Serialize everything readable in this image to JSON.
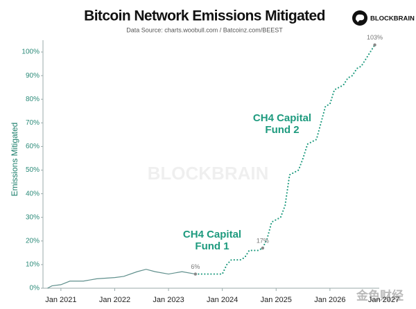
{
  "chart_data": {
    "type": "line",
    "title": "Bitcoin Network Emissions Mitigated",
    "subtitle": "Data Source: charts.woobull.com / Batcoinz.com/BEEST",
    "brand": "BLOCKBRAIN",
    "watermarks": [
      "BLOCKBRAIN",
      "金色财经"
    ],
    "y_label": "Emissions Mitigated",
    "xlim": [
      "2020-09",
      "2026-12"
    ],
    "xticks": [
      {
        "value": "2021-01",
        "label": "Jan 2021"
      },
      {
        "value": "2022-01",
        "label": "Jan 2022"
      },
      {
        "value": "2023-01",
        "label": "Jan 2023"
      },
      {
        "value": "2024-01",
        "label": "Jan 2024"
      },
      {
        "value": "2025-01",
        "label": "Jan 2025"
      },
      {
        "value": "2026-01",
        "label": "Jan 2026"
      },
      {
        "value": "2027-01",
        "label": "Jan 2027"
      }
    ],
    "ylim": [
      0,
      105
    ],
    "yticks": [
      {
        "value": 0,
        "label": "0%"
      },
      {
        "value": 10,
        "label": "10%"
      },
      {
        "value": 20,
        "label": "20%"
      },
      {
        "value": 30,
        "label": "30%"
      },
      {
        "value": 40,
        "label": "40%"
      },
      {
        "value": 50,
        "label": "50%"
      },
      {
        "value": 60,
        "label": "60%"
      },
      {
        "value": 70,
        "label": "70%"
      },
      {
        "value": 80,
        "label": "80%"
      },
      {
        "value": 90,
        "label": "90%"
      },
      {
        "value": 100,
        "label": "100%"
      }
    ],
    "series": [
      {
        "color": "#5f8f8c",
        "style": "solid",
        "x": [
          "2020-10",
          "2020-11",
          "2021-01",
          "2021-03",
          "2021-06",
          "2021-09",
          "2022-01",
          "2022-03",
          "2022-06",
          "2022-08",
          "2022-10",
          "2023-01",
          "2023-04",
          "2023-07"
        ],
        "values": [
          0,
          1,
          1.5,
          3,
          3,
          4,
          4.5,
          5,
          7,
          8,
          7,
          6,
          7,
          6
        ]
      },
      {
        "color": "#1d9a7e",
        "style": "dotted",
        "x": [
          "2023-07",
          "2023-08",
          "2023-09",
          "2023-10",
          "2023-11",
          "2023-12",
          "2024-01",
          "2024-02",
          "2024-03",
          "2024-04",
          "2024-05",
          "2024-06",
          "2024-07",
          "2024-08",
          "2024-09",
          "2024-10",
          "2024-11",
          "2024-12",
          "2025-01",
          "2025-02",
          "2025-03",
          "2025-04",
          "2025-05",
          "2025-06",
          "2025-07",
          "2025-08",
          "2025-09",
          "2025-10",
          "2025-11",
          "2025-12",
          "2026-01",
          "2026-02",
          "2026-03",
          "2026-04",
          "2026-05",
          "2026-06",
          "2026-07",
          "2026-08",
          "2026-09",
          "2026-10",
          "2026-11"
        ],
        "values": [
          6,
          6,
          6,
          6,
          6,
          6,
          6,
          10,
          12,
          12,
          12,
          13,
          16,
          16,
          16,
          17,
          21,
          28,
          29,
          30,
          35,
          48,
          49,
          50,
          55,
          61,
          62,
          63,
          70,
          77,
          78,
          84,
          85,
          86,
          89,
          90,
          93,
          94,
          97,
          100,
          103
        ]
      }
    ],
    "point_labels": [
      {
        "label": "6%",
        "x": "2023-07",
        "value": 6
      },
      {
        "label": "17%",
        "x": "2024-10",
        "value": 17
      },
      {
        "label": "103%",
        "x": "2026-11",
        "value": 103
      }
    ],
    "callouts": [
      [
        "CH4 Capital",
        "Fund 1"
      ],
      [
        "CH4 Capital",
        "Fund 2"
      ]
    ]
  }
}
